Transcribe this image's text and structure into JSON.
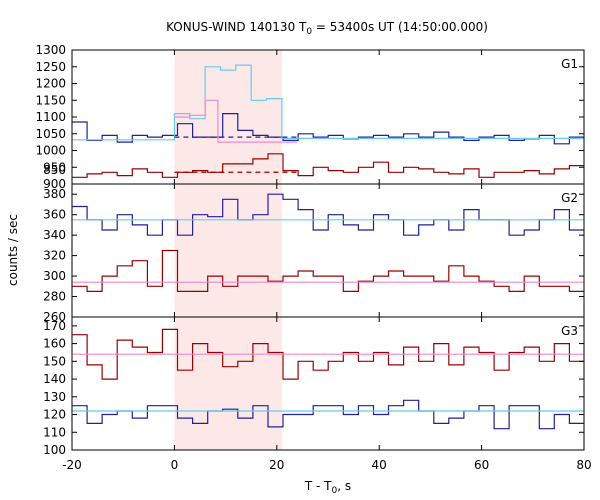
{
  "chart_data": {
    "type": "line",
    "title": "KONUS-WIND 140130 T",
    "title_sub": "0",
    "title_rest": " = 53400s UT (14:50:00.000)",
    "xlabel": "T - T",
    "xlabel_sub": "0",
    "xlabel_rest": ", s",
    "ylabel": "counts / sec",
    "xlim": [
      -20,
      80
    ],
    "x_ticks": [
      -20,
      0,
      20,
      40,
      60,
      80
    ],
    "highlight_interval": [
      0,
      21
    ],
    "colors": {
      "dark_red": "#990000",
      "dark_blue": "#1f1f9f",
      "light_blue": "#66ccee",
      "pink": "#ee88cc",
      "highlight": "#fde8e8"
    },
    "step": 2.944,
    "x_start": -20,
    "panels": [
      {
        "label": "G1",
        "ylim": [
          900,
          1300
        ],
        "y_ticks": [
          850,
          900,
          950,
          1000,
          1050,
          1100,
          1150,
          1200,
          1250,
          1300
        ],
        "series": [
          {
            "color": "dark_blue",
            "values": [
              1085,
              1030,
              1045,
              1025,
              1045,
              1040,
              1045,
              1080,
              1040,
              1040,
              1110,
              1060,
              1045,
              1040,
              1030,
              1050,
              1040,
              1045,
              1035,
              1040,
              1045,
              1040,
              1050,
              1040,
              1055,
              1040,
              1030,
              1040,
              1045,
              1030,
              1035,
              1045,
              1020,
              1040,
              1020,
              1040,
              1030,
              1050,
              1040,
              1045,
              1050,
              1040,
              1060,
              1045,
              1035
            ]
          },
          {
            "color": "dark_red",
            "values": [
              920,
              930,
              935,
              925,
              945,
              935,
              920,
              935,
              940,
              935,
              960,
              960,
              975,
              990,
              940,
              925,
              950,
              940,
              935,
              950,
              965,
              935,
              950,
              945,
              935,
              930,
              945,
              920,
              935,
              935,
              940,
              930,
              945,
              955,
              935,
              925,
              920,
              910,
              935,
              920,
              940,
              935,
              935,
              930,
              935
            ]
          },
          {
            "color": "light_blue",
            "step": 0,
            "segments": [
              {
                "x": [
                  -20,
                  0
                ],
                "y": [
                  1032,
                  1032
                ]
              },
              {
                "x": [
                  0,
                  3
                ],
                "y": [
                  1110,
                  1110
                ]
              },
              {
                "x": [
                  3,
                  6
                ],
                "y": [
                  1095,
                  1095
                ]
              },
              {
                "x": [
                  6,
                  9
                ],
                "y": [
                  1250,
                  1250
                ]
              },
              {
                "x": [
                  9,
                  12
                ],
                "y": [
                  1240,
                  1240
                ]
              },
              {
                "x": [
                  12,
                  15
                ],
                "y": [
                  1255,
                  1255
                ]
              },
              {
                "x": [
                  15,
                  18
                ],
                "y": [
                  1150,
                  1150
                ]
              },
              {
                "x": [
                  18,
                  21
                ],
                "y": [
                  1155,
                  1155
                ]
              },
              {
                "x": [
                  21,
                  80
                ],
                "y": [
                  1036,
                  1036
                ]
              }
            ]
          },
          {
            "color": "pink",
            "segments": [
              {
                "x": [
                  0,
                  3
                ],
                "y": [
                  1100,
                  1100
                ]
              },
              {
                "x": [
                  3,
                  6
                ],
                "y": [
                  1105,
                  1105
                ]
              },
              {
                "x": [
                  6,
                  8.5
                ],
                "y": [
                  1150,
                  1150
                ]
              },
              {
                "x": [
                  8.5,
                  12
                ],
                "y": [
                  1025,
                  1025
                ]
              },
              {
                "x": [
                  12,
                  24
                ],
                "y": [
                  1025,
                  1025
                ]
              }
            ]
          }
        ],
        "dashed": [
          {
            "color": "dark_blue",
            "x": [
              0,
              24
            ],
            "y": 1040
          },
          {
            "color": "dark_red",
            "x": [
              0,
              24
            ],
            "y": 935
          }
        ]
      },
      {
        "label": "G2",
        "ylim": [
          260,
          390
        ],
        "y_ticks": [
          260,
          280,
          300,
          320,
          340,
          360,
          380
        ],
        "series": [
          {
            "color": "dark_blue",
            "values": [
              368,
              355,
              345,
              360,
              350,
              340,
              355,
              340,
              360,
              358,
              375,
              355,
              360,
              380,
              375,
              365,
              345,
              360,
              350,
              345,
              360,
              355,
              340,
              350,
              355,
              345,
              365,
              355,
              355,
              340,
              345,
              355,
              365,
              345,
              345,
              360,
              345,
              355,
              335,
              360,
              355,
              350,
              365,
              340,
              345,
              370
            ]
          },
          {
            "color": "dark_red",
            "values": [
              290,
              285,
              300,
              310,
              315,
              290,
              325,
              285,
              285,
              300,
              290,
              300,
              300,
              295,
              300,
              305,
              300,
              300,
              285,
              295,
              300,
              305,
              300,
              300,
              295,
              310,
              300,
              295,
              290,
              285,
              300,
              290,
              290,
              285,
              300,
              295,
              300,
              280,
              295,
              290,
              295,
              290,
              300,
              310,
              290
            ]
          },
          {
            "color": "light_blue",
            "segments": [
              {
                "x": [
                  -20,
                  80
                ],
                "y": [
                  355,
                  355
                ]
              }
            ]
          },
          {
            "color": "pink",
            "segments": [
              {
                "x": [
                  -20,
                  80
                ],
                "y": [
                  294,
                  294
                ]
              }
            ]
          }
        ]
      },
      {
        "label": "G3",
        "ylim": [
          100,
          175
        ],
        "y_ticks": [
          100,
          110,
          120,
          130,
          140,
          150,
          160,
          170
        ],
        "series": [
          {
            "color": "dark_blue",
            "values": [
              125,
              115,
              120,
              122,
              118,
              125,
              125,
              118,
              115,
              122,
              123,
              118,
              125,
              113,
              120,
              120,
              125,
              125,
              120,
              125,
              120,
              125,
              128,
              122,
              115,
              118,
              122,
              125,
              112,
              125,
              125,
              112,
              120,
              115,
              125,
              125,
              120,
              118,
              125,
              140,
              135,
              120,
              125,
              118,
              115,
              130
            ]
          },
          {
            "color": "dark_red",
            "values": [
              165,
              148,
              140,
              162,
              158,
              155,
              168,
              145,
              160,
              155,
              147,
              150,
              160,
              155,
              140,
              150,
              145,
              150,
              155,
              150,
              155,
              148,
              158,
              150,
              160,
              148,
              158,
              155,
              145,
              155,
              158,
              150,
              160,
              150,
              155,
              148,
              155,
              168,
              150,
              140,
              155,
              145,
              160,
              150,
              155,
              160
            ]
          },
          {
            "color": "light_blue",
            "segments": [
              {
                "x": [
                  -20,
                  80
                ],
                "y": [
                  122,
                  122
                ]
              }
            ]
          },
          {
            "color": "pink",
            "segments": [
              {
                "x": [
                  -20,
                  80
                ],
                "y": [
                  154,
                  154
                ]
              }
            ]
          }
        ]
      }
    ]
  }
}
